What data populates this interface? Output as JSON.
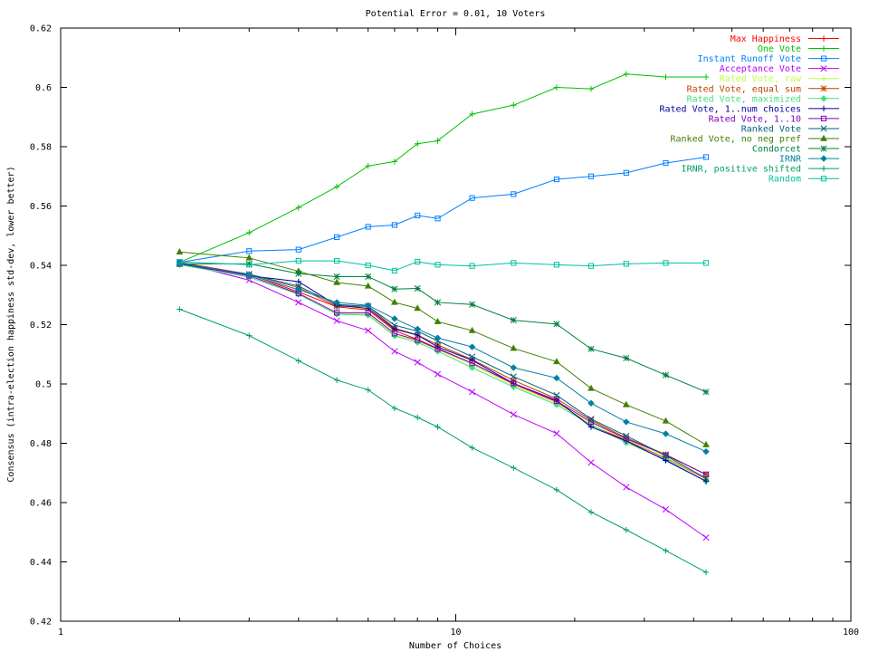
{
  "chart_data": {
    "type": "line",
    "title": "Potential Error = 0.01, 10 Voters",
    "xlabel": "Number of Choices",
    "ylabel": "Consensus (intra-election happiness std-dev, lower better)",
    "x_scale": "log",
    "xlim": [
      1,
      100
    ],
    "ylim": [
      0.42,
      0.62
    ],
    "x_ticks": [
      1,
      10,
      100
    ],
    "x_tick_labels": [
      "1",
      "10",
      "100"
    ],
    "y_ticks": [
      0.42,
      0.44,
      0.46,
      0.48,
      0.5,
      0.52,
      0.54,
      0.56,
      0.58,
      0.6,
      0.62
    ],
    "y_tick_labels": [
      "0.42",
      "0.44",
      "0.46",
      "0.48",
      "0.5",
      "0.52",
      "0.54",
      "0.56",
      "0.58",
      "0.6",
      "0.62"
    ],
    "grid": false,
    "legend_position": "top-right",
    "x": [
      2,
      3,
      4,
      5,
      6,
      7,
      8,
      9,
      11,
      14,
      18,
      22,
      27,
      34,
      43
    ],
    "series": [
      {
        "name": "Max Happiness",
        "color": "#ff0000",
        "marker": "plus",
        "values": [
          0.541,
          0.537,
          0.531,
          0.526,
          0.525,
          0.518,
          0.515,
          0.512,
          0.507,
          0.5,
          0.494,
          0.486,
          0.481,
          0.475,
          0.468
        ]
      },
      {
        "name": "One Vote",
        "color": "#00c000",
        "marker": "plus",
        "values": [
          0.541,
          0.551,
          0.5595,
          0.5665,
          0.5735,
          0.575,
          0.581,
          0.582,
          0.591,
          0.594,
          0.6,
          0.5995,
          0.6045,
          0.6035,
          0.6035
        ]
      },
      {
        "name": "Instant Runoff Vote",
        "color": "#0080ff",
        "marker": "square",
        "values": [
          0.541,
          0.5448,
          0.5453,
          0.5495,
          0.553,
          0.5536,
          0.5568,
          0.5558,
          0.5627,
          0.564,
          0.569,
          0.57,
          0.5712,
          0.5745,
          0.5765
        ]
      },
      {
        "name": "Acceptance Vote",
        "color": "#c000ff",
        "marker": "x",
        "values": [
          0.541,
          0.535,
          0.5275,
          0.5213,
          0.518,
          0.511,
          0.5073,
          0.5033,
          0.4973,
          0.4897,
          0.4833,
          0.4735,
          0.4652,
          0.4577,
          0.4482
        ]
      },
      {
        "name": "Rated Vote, raw",
        "color": "#c0ff40",
        "marker": "plus",
        "values": [
          0.5405,
          0.5365,
          0.5305,
          0.5238,
          0.5235,
          0.5165,
          0.5145,
          0.5115,
          0.5065,
          0.4995,
          0.4935,
          0.4868,
          0.4812,
          0.4752,
          0.4682
        ]
      },
      {
        "name": "Rated Vote, equal sum",
        "color": "#c04000",
        "marker": "star",
        "values": [
          0.5405,
          0.537,
          0.5325,
          0.5262,
          0.5262,
          0.5188,
          0.5165,
          0.5132,
          0.5082,
          0.5012,
          0.495,
          0.4878,
          0.4818,
          0.4762,
          0.4695
        ]
      },
      {
        "name": "Rated Vote, maximized",
        "color": "#40e080",
        "marker": "diamond",
        "values": [
          0.5402,
          0.536,
          0.5302,
          0.5235,
          0.5232,
          0.5162,
          0.514,
          0.511,
          0.5055,
          0.499,
          0.493,
          0.4862,
          0.4802,
          0.4745,
          0.4672
        ]
      },
      {
        "name": "Rated Vote, 1..num choices",
        "color": "#0000a0",
        "marker": "plus",
        "values": [
          0.5405,
          0.5365,
          0.5345,
          0.5265,
          0.5255,
          0.5185,
          0.5165,
          0.5125,
          0.508,
          0.5002,
          0.4945,
          0.4855,
          0.4808,
          0.4742,
          0.4672
        ]
      },
      {
        "name": "Rated Vote, 1..10",
        "color": "#8000c0",
        "marker": "square",
        "values": [
          0.5405,
          0.5365,
          0.5305,
          0.524,
          0.524,
          0.517,
          0.5148,
          0.5118,
          0.507,
          0.5002,
          0.4942,
          0.4872,
          0.4815,
          0.476,
          0.4695
        ]
      },
      {
        "name": "Ranked Vote",
        "color": "#006080",
        "marker": "x",
        "values": [
          0.5405,
          0.537,
          0.533,
          0.5268,
          0.5262,
          0.5198,
          0.5178,
          0.5145,
          0.5092,
          0.5025,
          0.4962,
          0.4882,
          0.4825,
          0.4758,
          0.4682
        ]
      },
      {
        "name": "Ranked Vote, no neg pref",
        "color": "#408000",
        "marker": "triangle",
        "values": [
          0.5445,
          0.5425,
          0.538,
          0.5342,
          0.533,
          0.5275,
          0.5255,
          0.521,
          0.518,
          0.512,
          0.5075,
          0.4985,
          0.493,
          0.4875,
          0.4795
        ]
      },
      {
        "name": "Condorcet",
        "color": "#008040",
        "marker": "star",
        "values": [
          0.5405,
          0.5405,
          0.5372,
          0.5362,
          0.5362,
          0.532,
          0.5322,
          0.5275,
          0.5268,
          0.5215,
          0.5202,
          0.5118,
          0.5087,
          0.503,
          0.4973
        ]
      },
      {
        "name": "IRNR",
        "color": "#0080a0",
        "marker": "diamond",
        "values": [
          0.5408,
          0.5368,
          0.5318,
          0.5275,
          0.5265,
          0.522,
          0.5185,
          0.5155,
          0.5125,
          0.5055,
          0.502,
          0.4935,
          0.4872,
          0.4832,
          0.4772
        ]
      },
      {
        "name": "IRNR, positive shifted",
        "color": "#00a060",
        "marker": "plus",
        "values": [
          0.5252,
          0.5163,
          0.5078,
          0.5013,
          0.498,
          0.4918,
          0.4887,
          0.4855,
          0.4785,
          0.4717,
          0.4643,
          0.4568,
          0.4508,
          0.4438,
          0.4365
        ]
      },
      {
        "name": "Random",
        "color": "#00c0a0",
        "marker": "square",
        "values": [
          0.5412,
          0.5402,
          0.5415,
          0.5415,
          0.54,
          0.5382,
          0.5412,
          0.5402,
          0.5398,
          0.5408,
          0.5402,
          0.5398,
          0.5405,
          0.5408,
          0.5408
        ]
      }
    ]
  }
}
